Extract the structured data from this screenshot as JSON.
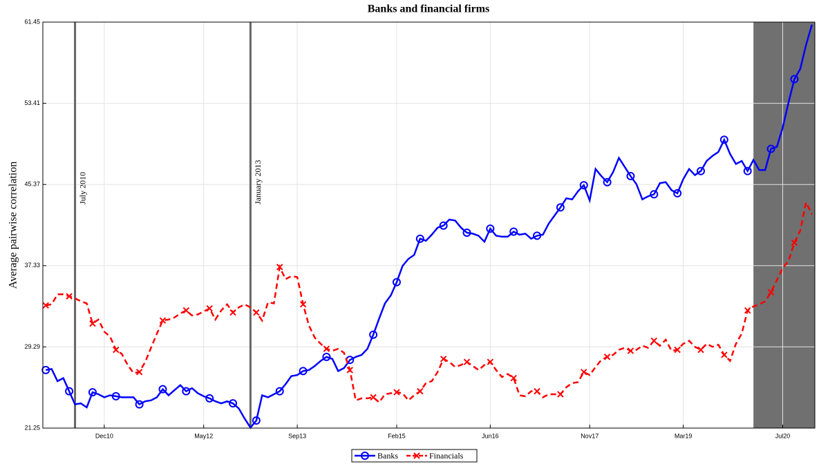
{
  "chart_data": {
    "type": "line",
    "title": "Banks and financial firms",
    "y_label": "Average pairwise correlation",
    "categories": [
      null,
      null,
      null,
      null,
      null,
      null,
      null,
      null,
      null,
      null,
      "Dec10",
      null,
      null,
      null,
      null,
      null,
      null,
      null,
      null,
      null,
      null,
      null,
      null,
      null,
      null,
      null,
      null,
      "May12",
      null,
      null,
      null,
      null,
      null,
      null,
      null,
      null,
      null,
      null,
      null,
      null,
      null,
      null,
      null,
      "Sep13",
      null,
      null,
      null,
      null,
      null,
      null,
      null,
      null,
      null,
      null,
      null,
      null,
      null,
      null,
      null,
      null,
      "Feb15",
      null,
      null,
      null,
      null,
      null,
      null,
      null,
      null,
      null,
      null,
      null,
      null,
      null,
      null,
      null,
      "Jun16",
      null,
      null,
      null,
      null,
      null,
      null,
      null,
      null,
      null,
      null,
      null,
      null,
      null,
      null,
      null,
      null,
      "Nov17",
      null,
      null,
      null,
      null,
      null,
      null,
      null,
      null,
      null,
      null,
      null,
      null,
      null,
      null,
      null,
      "Mar19",
      null,
      null,
      null,
      null,
      null,
      null,
      null,
      null,
      null,
      null,
      null,
      null,
      null,
      null,
      null,
      null,
      "Jul20",
      null,
      null,
      null,
      null,
      null
    ],
    "series": [
      {
        "name": "Banks",
        "color": "#0000ff",
        "dash": "solid",
        "marker": "circle",
        "values": [
          27.0,
          27.1,
          25.9,
          26.2,
          24.9,
          23.6,
          23.7,
          23.3,
          24.8,
          24.6,
          24.3,
          24.5,
          24.4,
          24.3,
          24.3,
          24.3,
          23.6,
          23.9,
          24.0,
          24.3,
          25.1,
          24.5,
          25.0,
          25.5,
          24.9,
          25.2,
          24.7,
          24.4,
          24.2,
          23.9,
          23.7,
          23.9,
          23.7,
          23.2,
          22.2,
          21.3,
          22.0,
          24.5,
          24.3,
          24.6,
          24.9,
          25.6,
          26.4,
          26.5,
          26.9,
          27.0,
          27.4,
          27.9,
          28.3,
          28.1,
          26.9,
          27.2,
          28.0,
          28.3,
          28.5,
          29.1,
          30.5,
          32.1,
          33.6,
          34.4,
          35.7,
          37.3,
          38.0,
          38.4,
          40.0,
          39.8,
          40.4,
          41.1,
          41.3,
          41.9,
          41.8,
          41.1,
          40.6,
          40.5,
          40.3,
          39.7,
          41.0,
          40.3,
          40.2,
          40.2,
          40.7,
          40.4,
          40.5,
          40.0,
          40.3,
          40.4,
          41.5,
          42.3,
          43.1,
          44.0,
          43.9,
          44.7,
          45.3,
          43.8,
          46.9,
          46.2,
          45.6,
          46.6,
          48.0,
          47.1,
          46.2,
          45.4,
          43.9,
          44.2,
          44.4,
          45.5,
          45.6,
          44.8,
          44.5,
          45.9,
          46.9,
          46.3,
          46.7,
          47.7,
          48.2,
          48.6,
          49.8,
          48.4,
          47.4,
          47.7,
          46.7,
          47.8,
          46.8,
          46.8,
          48.9,
          49.1,
          51.0,
          53.5,
          55.8,
          56.8,
          59.2,
          61.2
        ]
      },
      {
        "name": "Financials",
        "color": "#ff0000",
        "dash": "dashed",
        "marker": "x",
        "values": [
          33.4,
          33.5,
          34.5,
          34.5,
          34.3,
          34.1,
          33.8,
          33.6,
          31.6,
          32.0,
          30.8,
          30.3,
          29.0,
          28.6,
          27.5,
          26.7,
          26.8,
          27.8,
          29.2,
          30.6,
          31.9,
          32.0,
          32.2,
          32.6,
          32.9,
          32.4,
          32.5,
          32.8,
          33.1,
          32.0,
          32.9,
          33.5,
          32.7,
          33.2,
          33.5,
          33.2,
          32.7,
          31.9,
          33.7,
          33.6,
          37.2,
          36.0,
          36.3,
          36.2,
          33.5,
          31.4,
          30.2,
          29.6,
          29.1,
          28.9,
          29.1,
          28.7,
          27.0,
          24.0,
          24.2,
          24.2,
          24.3,
          23.8,
          24.6,
          24.7,
          24.8,
          24.7,
          24.0,
          24.5,
          24.9,
          25.7,
          25.9,
          26.8,
          28.1,
          27.8,
          27.3,
          27.5,
          27.8,
          27.4,
          27.0,
          27.5,
          27.8,
          27.0,
          26.3,
          26.6,
          26.2,
          24.5,
          24.4,
          24.9,
          24.9,
          24.3,
          24.6,
          24.6,
          24.6,
          25.3,
          25.7,
          25.8,
          26.8,
          26.5,
          27.3,
          28.0,
          28.3,
          28.5,
          29.0,
          29.2,
          28.9,
          29.0,
          29.4,
          29.2,
          29.9,
          29.4,
          30.0,
          28.9,
          29.0,
          29.6,
          29.9,
          29.3,
          29.0,
          29.6,
          29.3,
          29.5,
          28.5,
          27.9,
          29.6,
          30.6,
          32.9,
          33.3,
          33.5,
          33.8,
          34.7,
          35.9,
          37.1,
          37.8,
          39.6,
          40.8,
          43.6,
          42.4
        ]
      }
    ],
    "marker_every": 4,
    "ylim": [
      21.25,
      61.45
    ],
    "yticks": [
      21.25,
      29.29,
      37.33,
      45.37,
      53.41,
      61.45
    ],
    "grid": true,
    "legend": "bottom",
    "event_lines": [
      {
        "label": "July 2010",
        "category_index": 5
      },
      {
        "label": "January 2013",
        "category_index": 35
      }
    ],
    "shaded_region": {
      "start": 121.5,
      "end": 132,
      "color": "#707070"
    }
  }
}
